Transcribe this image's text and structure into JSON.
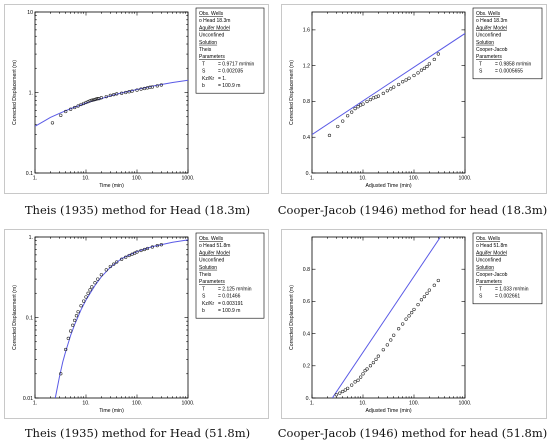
{
  "chart_data": [
    {
      "type": "scatter",
      "xscale": "log",
      "yscale": "log",
      "xlim": [
        1,
        1000
      ],
      "ylim": [
        0.1,
        10
      ],
      "xlabel": "Time (min)",
      "ylabel": "Corrected Displacement (m)",
      "xticks": [
        {
          "v": 1,
          "t": "1."
        },
        {
          "v": 10,
          "t": "10."
        },
        {
          "v": 100,
          "t": "100."
        },
        {
          "v": 1000,
          "t": "1000."
        }
      ],
      "yticks": [
        {
          "v": 0.1,
          "t": "0.1"
        },
        {
          "v": 1,
          "t": "1."
        },
        {
          "v": 10,
          "t": "10"
        }
      ],
      "x": [
        2.2,
        3.2,
        4.0,
        5.0,
        6.0,
        7.0,
        8.0,
        9.0,
        10,
        11,
        12,
        13,
        14,
        15,
        16,
        17,
        18,
        20,
        25,
        30,
        35,
        40,
        50,
        60,
        70,
        80,
        100,
        120,
        140,
        160,
        180,
        200,
        250,
        300
      ],
      "y": [
        0.42,
        0.52,
        0.58,
        0.62,
        0.65,
        0.68,
        0.71,
        0.73,
        0.75,
        0.77,
        0.79,
        0.8,
        0.81,
        0.82,
        0.83,
        0.84,
        0.84,
        0.86,
        0.89,
        0.92,
        0.94,
        0.96,
        0.98,
        1.0,
        1.02,
        1.04,
        1.07,
        1.1,
        1.12,
        1.14,
        1.16,
        1.17,
        1.21,
        1.24
      ],
      "fit_x": [
        1,
        1.5,
        2,
        3,
        5,
        7,
        10,
        20,
        30,
        50,
        100,
        200,
        500,
        1000
      ],
      "fit_y": [
        0.38,
        0.44,
        0.49,
        0.55,
        0.63,
        0.68,
        0.74,
        0.84,
        0.91,
        0.99,
        1.09,
        1.2,
        1.33,
        1.42
      ],
      "legend": {
        "obs_header": "Obs. Wells",
        "obs_well": "Head 18.3m",
        "aquifer_header": "Aquifer Model",
        "aquifer": "Unconfined",
        "solution_header": "Solution",
        "solution": "Theis",
        "params_header": "Parameters",
        "params": [
          [
            "T",
            "= 0.9717 m²/min"
          ],
          [
            "S",
            "= 0.002035"
          ],
          [
            "Kz/Kr",
            "= 1."
          ],
          [
            "b",
            "= 100.9 m"
          ]
        ]
      },
      "caption": "Theis (1935) method for Head (18.3m)"
    },
    {
      "type": "scatter",
      "xscale": "log",
      "yscale": "linear",
      "xlim": [
        1,
        1000
      ],
      "ylim": [
        0,
        1.8
      ],
      "xlabel": "Adjusted Time (min)",
      "ylabel": "Corrected Displacement (m)",
      "xticks": [
        {
          "v": 1,
          "t": "1."
        },
        {
          "v": 10,
          "t": "10."
        },
        {
          "v": 100,
          "t": "100."
        },
        {
          "v": 1000,
          "t": "1000."
        }
      ],
      "yticks": [
        {
          "v": 0,
          "t": "0."
        },
        {
          "v": 0.4,
          "t": "0.4"
        },
        {
          "v": 0.8,
          "t": "0.8"
        },
        {
          "v": 1.2,
          "t": "1.2"
        },
        {
          "v": 1.6,
          "t": "1.6"
        }
      ],
      "x": [
        2.2,
        3.2,
        4.0,
        5.0,
        6.0,
        7.0,
        8.0,
        9.0,
        10,
        12,
        14,
        16,
        18,
        20,
        25,
        30,
        35,
        40,
        50,
        60,
        70,
        80,
        100,
        120,
        140,
        160,
        180,
        200,
        250,
        300
      ],
      "y": [
        0.42,
        0.52,
        0.58,
        0.64,
        0.68,
        0.72,
        0.74,
        0.76,
        0.77,
        0.8,
        0.82,
        0.84,
        0.85,
        0.86,
        0.89,
        0.92,
        0.94,
        0.96,
        0.99,
        1.02,
        1.04,
        1.06,
        1.09,
        1.12,
        1.15,
        1.17,
        1.19,
        1.22,
        1.27,
        1.33
      ],
      "fit_x": [
        1,
        1000
      ],
      "fit_y": [
        0.43,
        1.56
      ],
      "legend": {
        "obs_header": "Obs. Wells",
        "obs_well": "Head 18.3m",
        "aquifer_header": "Aquifer Model",
        "aquifer": "Unconfined",
        "solution_header": "Solution",
        "solution": "Cooper-Jacob",
        "params_header": "Parameters",
        "params": [
          [
            "T",
            "= 0.9858 m²/min"
          ],
          [
            "S",
            "= 0.0005655"
          ]
        ]
      },
      "caption": "Cooper-Jacob (1946) method for head (18.3m)"
    },
    {
      "type": "scatter",
      "xscale": "log",
      "yscale": "log",
      "xlim": [
        1,
        1000
      ],
      "ylim": [
        0.01,
        1
      ],
      "xlabel": "Time (min)",
      "ylabel": "Corrected Displacement (m)",
      "xticks": [
        {
          "v": 1,
          "t": "1."
        },
        {
          "v": 10,
          "t": "10."
        },
        {
          "v": 100,
          "t": "100."
        },
        {
          "v": 1000,
          "t": "1000."
        }
      ],
      "yticks": [
        {
          "v": 0.01,
          "t": "0.01"
        },
        {
          "v": 0.1,
          "t": "0.1"
        },
        {
          "v": 1,
          "t": "1."
        }
      ],
      "x": [
        3.2,
        4.0,
        4.5,
        5.0,
        5.5,
        6.0,
        6.5,
        7.0,
        8.0,
        9.0,
        10,
        11,
        12,
        13,
        15,
        17,
        20,
        25,
        30,
        35,
        40,
        50,
        60,
        70,
        80,
        90,
        100,
        120,
        140,
        160,
        200,
        250,
        300
      ],
      "y": [
        0.02,
        0.04,
        0.055,
        0.068,
        0.08,
        0.092,
        0.105,
        0.118,
        0.14,
        0.16,
        0.18,
        0.2,
        0.22,
        0.24,
        0.27,
        0.3,
        0.34,
        0.39,
        0.43,
        0.46,
        0.49,
        0.53,
        0.56,
        0.59,
        0.61,
        0.63,
        0.65,
        0.68,
        0.7,
        0.72,
        0.75,
        0.78,
        0.8
      ],
      "fit_x": [
        2.5,
        3,
        3.5,
        4,
        5,
        6,
        8,
        10,
        15,
        20,
        30,
        50,
        100,
        200,
        500,
        1000
      ],
      "fit_y": [
        0.01,
        0.018,
        0.028,
        0.038,
        0.06,
        0.082,
        0.125,
        0.165,
        0.25,
        0.32,
        0.42,
        0.54,
        0.66,
        0.76,
        0.86,
        0.92
      ],
      "legend": {
        "obs_header": "Obs. Wells",
        "obs_well": "Head 51.8m",
        "aquifer_header": "Aquifer Model",
        "aquifer": "Unconfined",
        "solution_header": "Solution",
        "solution": "Theis",
        "params_header": "Parameters",
        "params": [
          [
            "T",
            "= 2.125 m²/min"
          ],
          [
            "S",
            "= 0.01466"
          ],
          [
            "Kz/Kr",
            "= 0.003191"
          ],
          [
            "b",
            "= 100.9 m"
          ]
        ]
      },
      "caption": "Theis (1935) method for Head (51.8m)"
    },
    {
      "type": "scatter",
      "xscale": "log",
      "yscale": "linear",
      "xlim": [
        1,
        1000
      ],
      "ylim": [
        0,
        1.0
      ],
      "xlabel": "Adjusted Time (min)",
      "ylabel": "Corrected Displacement (m)",
      "xticks": [
        {
          "v": 1,
          "t": "1."
        },
        {
          "v": 10,
          "t": "10."
        },
        {
          "v": 100,
          "t": "100."
        },
        {
          "v": 1000,
          "t": "1000."
        }
      ],
      "yticks": [
        {
          "v": 0,
          "t": "0."
        },
        {
          "v": 0.2,
          "t": "0.2"
        },
        {
          "v": 0.4,
          "t": "0.4"
        },
        {
          "v": 0.6,
          "t": "0.6"
        },
        {
          "v": 0.8,
          "t": "0.8"
        }
      ],
      "x": [
        3.0,
        3.5,
        4.0,
        4.5,
        5.0,
        6.0,
        7.0,
        8.0,
        9.0,
        10,
        11,
        12,
        14,
        16,
        18,
        20,
        25,
        30,
        35,
        40,
        50,
        60,
        70,
        80,
        90,
        100,
        120,
        140,
        160,
        180,
        200,
        250,
        300
      ],
      "y": [
        0.02,
        0.03,
        0.04,
        0.05,
        0.06,
        0.08,
        0.1,
        0.11,
        0.13,
        0.15,
        0.17,
        0.18,
        0.2,
        0.22,
        0.24,
        0.26,
        0.3,
        0.33,
        0.36,
        0.39,
        0.43,
        0.46,
        0.49,
        0.51,
        0.53,
        0.55,
        0.58,
        0.61,
        0.63,
        0.65,
        0.67,
        0.7,
        0.73
      ],
      "fit_x": [
        2.5,
        330
      ],
      "fit_y": [
        0.0,
        1.0
      ],
      "legend": {
        "obs_header": "Obs. Wells",
        "obs_well": "Head 51.8m",
        "aquifer_header": "Aquifer Model",
        "aquifer": "Unconfined",
        "solution_header": "Solution",
        "solution": "Cooper-Jacob",
        "params_header": "Parameters",
        "params": [
          [
            "T",
            "= 1.033 m²/min"
          ],
          [
            "S",
            "= 0.002661"
          ]
        ]
      },
      "caption": "Cooper-Jacob (1946) method for head (51.8m)"
    }
  ]
}
